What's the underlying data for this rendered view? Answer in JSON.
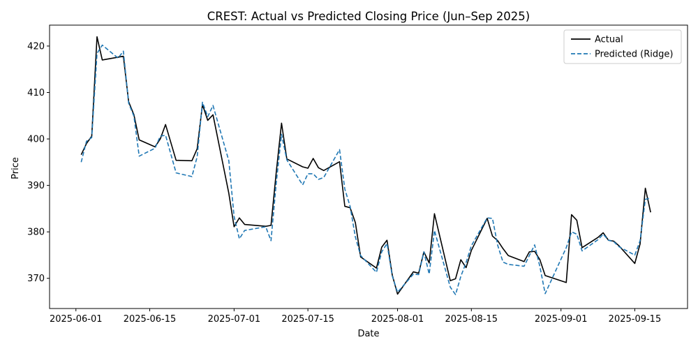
{
  "chart_data": {
    "type": "line",
    "title": "CREST: Actual vs Predicted Closing Price (Jun–Sep 2025)",
    "xlabel": "Date",
    "ylabel": "Price",
    "xlim": [
      "2025-05-27",
      "2025-09-25"
    ],
    "ylim": [
      363.5,
      424.5
    ],
    "xticks": [
      "2025-06-01",
      "2025-06-15",
      "2025-07-01",
      "2025-07-15",
      "2025-08-01",
      "2025-08-15",
      "2025-09-01",
      "2025-09-15"
    ],
    "yticks": [
      370,
      380,
      390,
      400,
      410,
      420
    ],
    "grid": false,
    "legend_position": "top-right",
    "dates": [
      "2025-06-02",
      "2025-06-03",
      "2025-06-04",
      "2025-06-05",
      "2025-06-06",
      "2025-06-09",
      "2025-06-10",
      "2025-06-11",
      "2025-06-12",
      "2025-06-13",
      "2025-06-16",
      "2025-06-17",
      "2025-06-18",
      "2025-06-20",
      "2025-06-23",
      "2025-06-24",
      "2025-06-25",
      "2025-06-26",
      "2025-06-27",
      "2025-06-30",
      "2025-07-01",
      "2025-07-02",
      "2025-07-03",
      "2025-07-07",
      "2025-07-08",
      "2025-07-09",
      "2025-07-10",
      "2025-07-11",
      "2025-07-14",
      "2025-07-15",
      "2025-07-16",
      "2025-07-17",
      "2025-07-18",
      "2025-07-21",
      "2025-07-22",
      "2025-07-23",
      "2025-07-24",
      "2025-07-25",
      "2025-07-28",
      "2025-07-29",
      "2025-07-30",
      "2025-07-31",
      "2025-08-01",
      "2025-08-04",
      "2025-08-05",
      "2025-08-06",
      "2025-08-07",
      "2025-08-08",
      "2025-08-11",
      "2025-08-12",
      "2025-08-13",
      "2025-08-14",
      "2025-08-15",
      "2025-08-18",
      "2025-08-19",
      "2025-08-20",
      "2025-08-21",
      "2025-08-22",
      "2025-08-25",
      "2025-08-26",
      "2025-08-27",
      "2025-08-28",
      "2025-08-29",
      "2025-09-02",
      "2025-09-03",
      "2025-09-04",
      "2025-09-05",
      "2025-09-08",
      "2025-09-09",
      "2025-09-10",
      "2025-09-11",
      "2025-09-12",
      "2025-09-15",
      "2025-09-16",
      "2025-09-17",
      "2025-09-18"
    ],
    "series": [
      {
        "name": "Actual",
        "color": "#000000",
        "dash": "solid",
        "values": [
          396.6,
          399.0,
          400.6,
          422.0,
          417.0,
          417.6,
          417.8,
          408.0,
          405.2,
          399.8,
          398.3,
          400.0,
          403.1,
          395.4,
          395.3,
          397.9,
          407.4,
          404.0,
          405.2,
          388.3,
          381.1,
          383.0,
          381.6,
          381.2,
          381.4,
          392.9,
          403.4,
          395.7,
          394.0,
          393.7,
          395.8,
          393.8,
          393.2,
          395.1,
          385.5,
          385.2,
          382.0,
          374.6,
          372.2,
          376.7,
          378.2,
          370.7,
          366.6,
          371.4,
          371.1,
          375.7,
          373.3,
          383.9,
          369.5,
          369.9,
          374.0,
          372.3,
          376.0,
          382.9,
          379.1,
          378.1,
          376.4,
          374.9,
          373.6,
          375.7,
          375.8,
          374.0,
          370.6,
          369.1,
          383.7,
          382.5,
          376.6,
          378.8,
          379.8,
          378.2,
          378.0,
          377.0,
          373.2,
          377.4,
          389.4,
          384.2
        ]
      },
      {
        "name": "Predicted (Ridge)",
        "color": "#1f77b4",
        "dash": "dashed",
        "values": [
          395.0,
          399.5,
          400.3,
          418.4,
          420.2,
          417.4,
          418.9,
          407.7,
          404.9,
          396.3,
          398.0,
          400.6,
          400.8,
          392.7,
          391.9,
          396.2,
          407.9,
          404.8,
          407.2,
          395.3,
          383.3,
          378.5,
          380.3,
          381.1,
          378.1,
          390.6,
          401.0,
          395.5,
          390.1,
          392.5,
          392.5,
          391.3,
          391.7,
          397.7,
          389.2,
          385.5,
          378.9,
          374.9,
          371.3,
          375.7,
          377.5,
          370.5,
          367.0,
          370.9,
          370.8,
          375.7,
          370.9,
          380.3,
          368.1,
          366.5,
          370.4,
          373.4,
          377.0,
          383.0,
          382.9,
          377.1,
          373.5,
          373.0,
          372.6,
          374.9,
          377.2,
          372.5,
          366.7,
          376.6,
          380.0,
          379.5,
          375.9,
          378.3,
          379.5,
          378.2,
          377.9,
          376.8,
          375.0,
          378.1,
          387.0,
          387.3
        ]
      }
    ]
  }
}
